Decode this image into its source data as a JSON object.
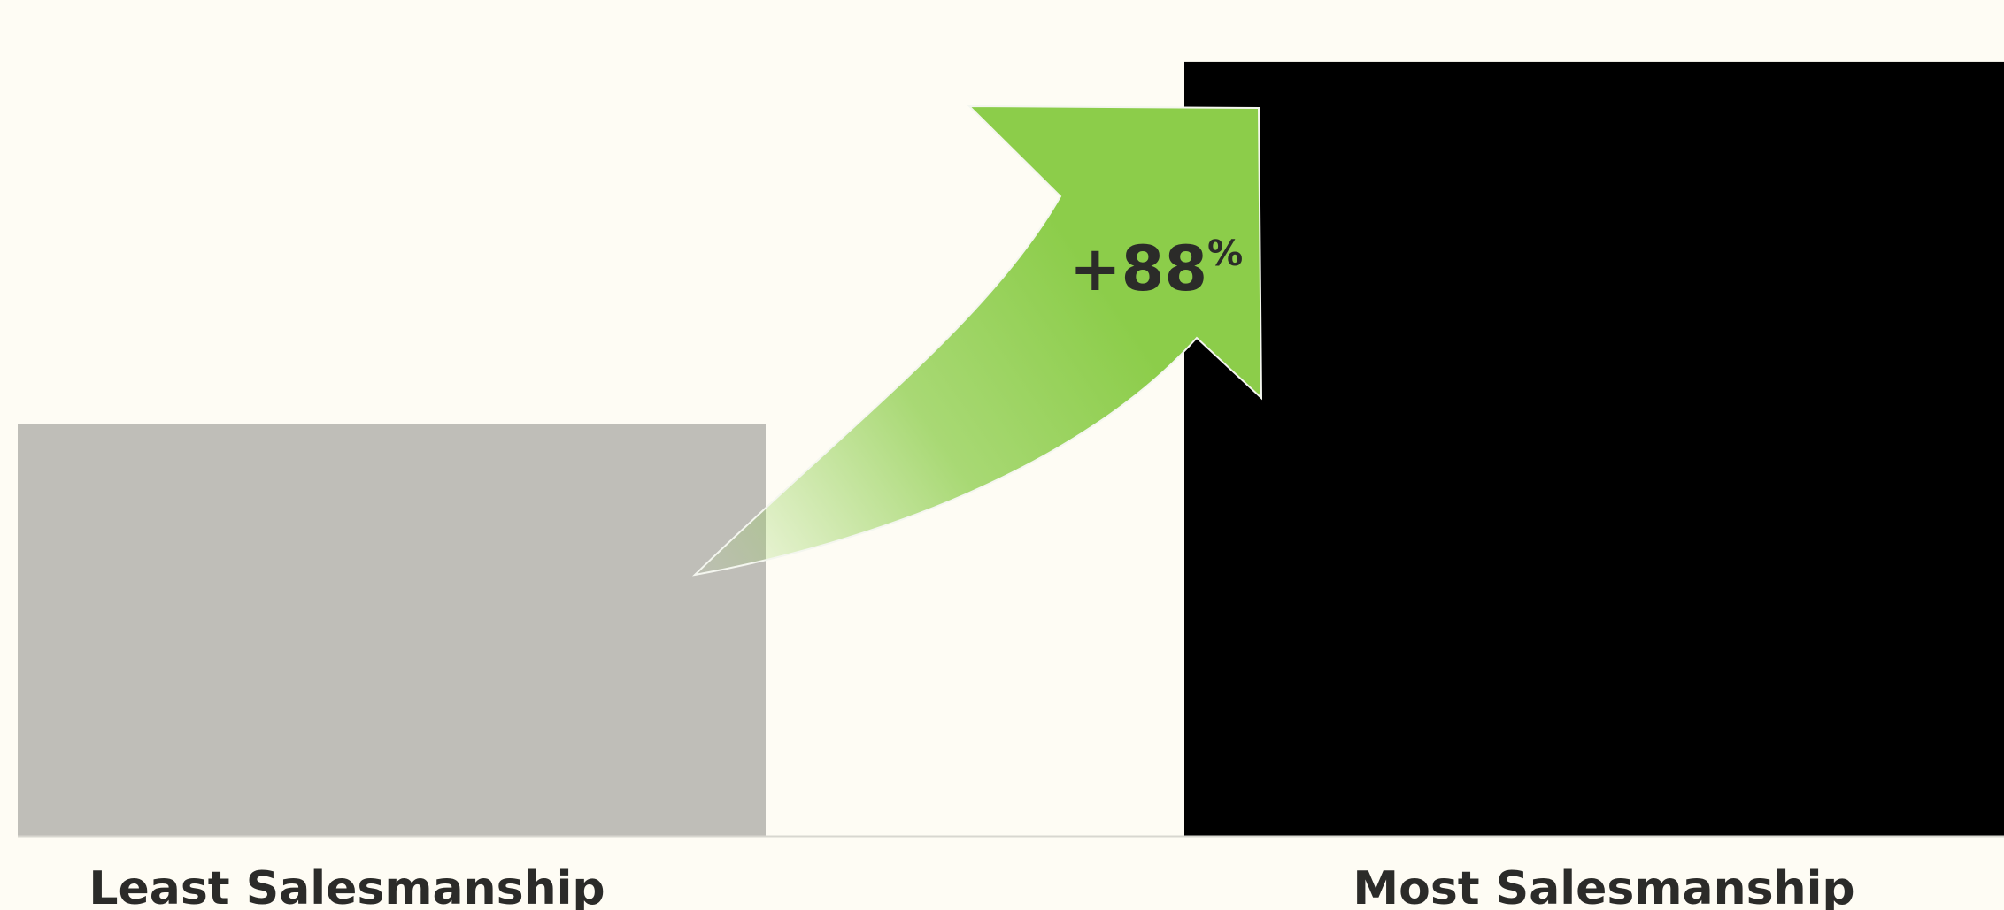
{
  "chart_data": {
    "type": "bar",
    "categories": [
      "Least Salesmanship",
      "Most Salesmanship"
    ],
    "values": [
      1,
      1.88
    ],
    "ylim": [
      0,
      2.0
    ],
    "bar_colors": [
      "#bfbeb8",
      "#000000"
    ],
    "grid": false,
    "legend": "none",
    "annotation": {
      "value": "+88",
      "unit": "%",
      "color": "#8ccd4a",
      "from_category": "Least Salesmanship",
      "to_category": "Most Salesmanship"
    }
  },
  "colors": {
    "background": "#fefcf4",
    "baseline": "#d8d7d0",
    "label": "#2b2b29"
  }
}
